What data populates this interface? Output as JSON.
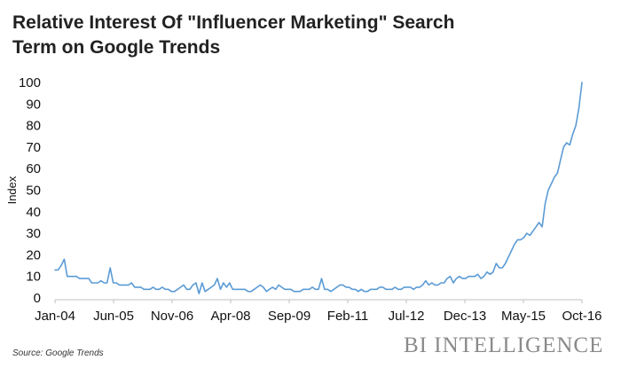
{
  "header": {
    "title_line1": "Relative Interest Of \"Influencer Marketing\" Search",
    "title_line2": "Term on Google Trends"
  },
  "footer": {
    "source": "Source: Google Trends",
    "brand": "BI INTELLIGENCE"
  },
  "colors": {
    "line": "#5b9bd5",
    "axis": "#bfbfbf",
    "text": "#111111"
  },
  "chart_data": {
    "type": "line",
    "title": "Relative Interest Of \"Influencer Marketing\" Search Term on Google Trends",
    "xlabel": "",
    "ylabel": "Index",
    "ylim": [
      0,
      100
    ],
    "yticks": [
      0,
      10,
      20,
      30,
      40,
      50,
      60,
      70,
      80,
      90,
      100
    ],
    "xticks": [
      "Jan-04",
      "Jun-05",
      "Nov-06",
      "Apr-08",
      "Sep-09",
      "Feb-11",
      "Jul-12",
      "Dec-13",
      "May-15",
      "Oct-16"
    ],
    "grid": false,
    "series": [
      {
        "name": "",
        "x_start": "Jan-04",
        "x_end": "Oct-16",
        "values": [
          13,
          13,
          15,
          18,
          10,
          10,
          10,
          10,
          9,
          9,
          9,
          9,
          7,
          7,
          7,
          8,
          7,
          7,
          14,
          7,
          7,
          6,
          6,
          6,
          6,
          7,
          5,
          5,
          5,
          4,
          4,
          4,
          5,
          4,
          4,
          5,
          4,
          4,
          3,
          3,
          4,
          5,
          6,
          4,
          4,
          6,
          7,
          2,
          7,
          3,
          4,
          5,
          6,
          9,
          4,
          7,
          5,
          7,
          4,
          4,
          4,
          4,
          4,
          3,
          3,
          4,
          5,
          6,
          5,
          3,
          4,
          5,
          4,
          6,
          5,
          4,
          4,
          4,
          3,
          3,
          3,
          4,
          4,
          4,
          5,
          4,
          4,
          9,
          4,
          4,
          3,
          4,
          5,
          6,
          6,
          5,
          5,
          4,
          4,
          3,
          4,
          3,
          3,
          4,
          4,
          4,
          5,
          5,
          4,
          4,
          4,
          5,
          4,
          4,
          5,
          5,
          5,
          4,
          5,
          5,
          6,
          8,
          6,
          7,
          6,
          6,
          7,
          7,
          9,
          10,
          7,
          9,
          10,
          9,
          9,
          10,
          10,
          10,
          11,
          9,
          10,
          12,
          11,
          12,
          16,
          14,
          14,
          16,
          19,
          22,
          25,
          27,
          27,
          28,
          30,
          29,
          31,
          33,
          35,
          33,
          44,
          50,
          53,
          56,
          58,
          64,
          70,
          72,
          71,
          76,
          80,
          88,
          100
        ]
      }
    ]
  }
}
